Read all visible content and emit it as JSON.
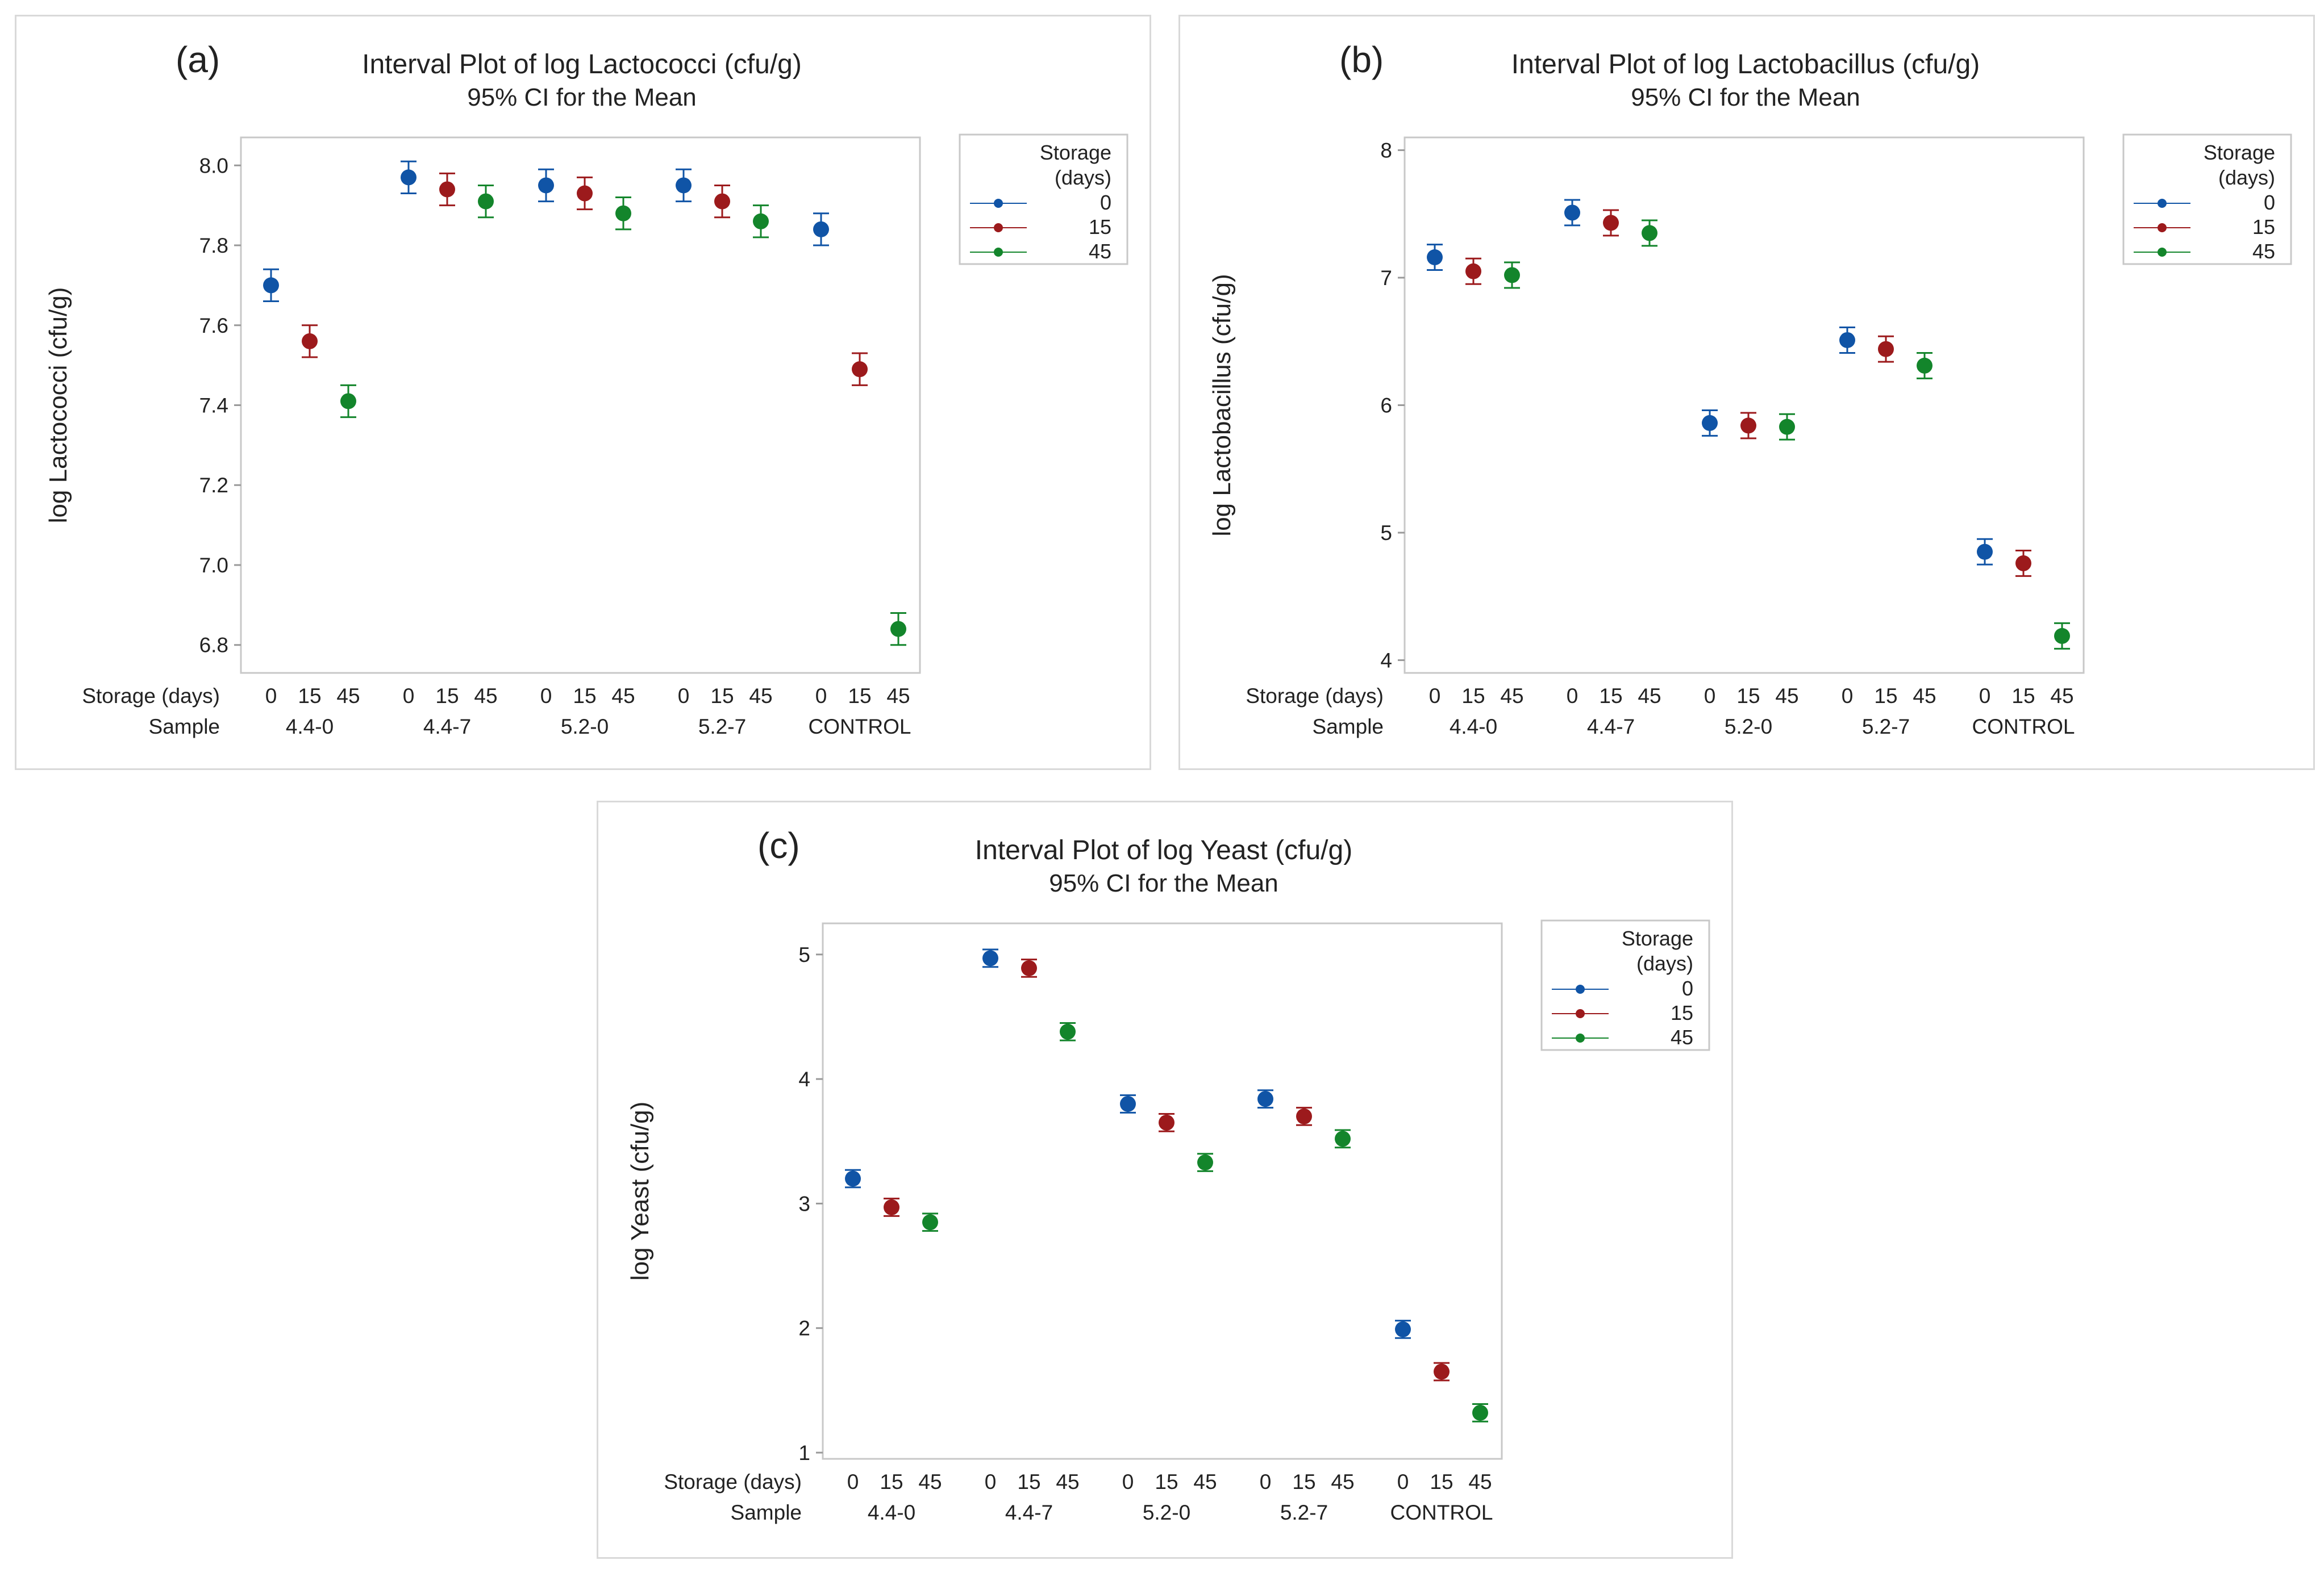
{
  "colors": {
    "0": "#1054a6",
    "15": "#9c1a1c",
    "45": "#13852b",
    "frame": "#c8c8c8",
    "panelBorder": "#d9d9d9"
  },
  "chart_data": [
    {
      "type": "scatter",
      "tag": "(a)",
      "title": "Interval Plot of log Lactococci  (cfu/g)",
      "subtitle": "95% CI for the Mean",
      "ylabel": "log Lactococci  (cfu/g)",
      "ylim": [
        6.73,
        8.07
      ],
      "yticks": [
        6.8,
        7.0,
        7.2,
        7.4,
        7.6,
        7.8,
        8.0
      ],
      "ytick_labels": [
        "6.8",
        "7.0",
        "7.2",
        "7.4",
        "7.6",
        "7.8",
        "8.0"
      ],
      "row_labels": [
        "Storage (days)",
        "Sample"
      ],
      "samples": [
        "4.4-0",
        "4.4-7",
        "5.2-0",
        "5.2-7",
        "CONTROL"
      ],
      "storage_levels": [
        "0",
        "15",
        "45"
      ],
      "legend": {
        "title_lines": [
          "Storage",
          "(days)"
        ],
        "entries": [
          "0",
          "15",
          "45"
        ],
        "position": "right"
      },
      "series": [
        {
          "name": "0",
          "means": [
            7.7,
            7.97,
            7.95,
            7.95,
            7.84
          ],
          "ci": [
            0.04,
            0.04,
            0.04,
            0.04,
            0.04
          ]
        },
        {
          "name": "15",
          "means": [
            7.56,
            7.94,
            7.93,
            7.91,
            7.49
          ],
          "ci": [
            0.04,
            0.04,
            0.04,
            0.04,
            0.04
          ]
        },
        {
          "name": "45",
          "means": [
            7.41,
            7.91,
            7.88,
            7.86,
            6.84
          ],
          "ci": [
            0.04,
            0.04,
            0.04,
            0.04,
            0.04
          ]
        }
      ]
    },
    {
      "type": "scatter",
      "tag": "(b)",
      "title": "Interval Plot of log Lactobacillus (cfu/g)",
      "subtitle": "95% CI for the Mean",
      "ylabel": "log Lactobacillus (cfu/g)",
      "ylim": [
        3.9,
        8.1
      ],
      "yticks": [
        4,
        5,
        6,
        7,
        8
      ],
      "ytick_labels": [
        "4",
        "5",
        "6",
        "7",
        "8"
      ],
      "row_labels": [
        "Storage (days)",
        "Sample"
      ],
      "samples": [
        "4.4-0",
        "4.4-7",
        "5.2-0",
        "5.2-7",
        "CONTROL"
      ],
      "storage_levels": [
        "0",
        "15",
        "45"
      ],
      "legend": {
        "title_lines": [
          "Storage",
          "(days)"
        ],
        "entries": [
          "0",
          "15",
          "45"
        ],
        "position": "right"
      },
      "series": [
        {
          "name": "0",
          "means": [
            7.16,
            7.51,
            5.86,
            6.51,
            4.85
          ],
          "ci": [
            0.1,
            0.1,
            0.1,
            0.1,
            0.1
          ]
        },
        {
          "name": "15",
          "means": [
            7.05,
            7.43,
            5.84,
            6.44,
            4.76
          ],
          "ci": [
            0.1,
            0.1,
            0.1,
            0.1,
            0.1
          ]
        },
        {
          "name": "45",
          "means": [
            7.02,
            7.35,
            5.83,
            6.31,
            4.19
          ],
          "ci": [
            0.1,
            0.1,
            0.1,
            0.1,
            0.1
          ]
        }
      ]
    },
    {
      "type": "scatter",
      "tag": "(c)",
      "title": "Interval Plot of log Yeast (cfu/g)",
      "subtitle": "95% CI for the Mean",
      "ylabel": "log Yeast (cfu/g)",
      "ylim": [
        0.95,
        5.25
      ],
      "yticks": [
        1,
        2,
        3,
        4,
        5
      ],
      "ytick_labels": [
        "1",
        "2",
        "3",
        "4",
        "5"
      ],
      "row_labels": [
        "Storage (days)",
        "Sample"
      ],
      "samples": [
        "4.4-0",
        "4.4-7",
        "5.2-0",
        "5.2-7",
        "CONTROL"
      ],
      "storage_levels": [
        "0",
        "15",
        "45"
      ],
      "legend": {
        "title_lines": [
          "Storage",
          "(days)"
        ],
        "entries": [
          "0",
          "15",
          "45"
        ],
        "position": "right"
      },
      "series": [
        {
          "name": "0",
          "means": [
            3.2,
            4.97,
            3.8,
            3.84,
            1.99
          ],
          "ci": [
            0.07,
            0.07,
            0.07,
            0.07,
            0.07
          ]
        },
        {
          "name": "15",
          "means": [
            2.97,
            4.89,
            3.65,
            3.7,
            1.65
          ],
          "ci": [
            0.07,
            0.07,
            0.07,
            0.07,
            0.07
          ]
        },
        {
          "name": "45",
          "means": [
            2.85,
            4.38,
            3.33,
            3.52,
            1.32
          ],
          "ci": [
            0.07,
            0.07,
            0.07,
            0.07,
            0.07
          ]
        }
      ]
    }
  ]
}
